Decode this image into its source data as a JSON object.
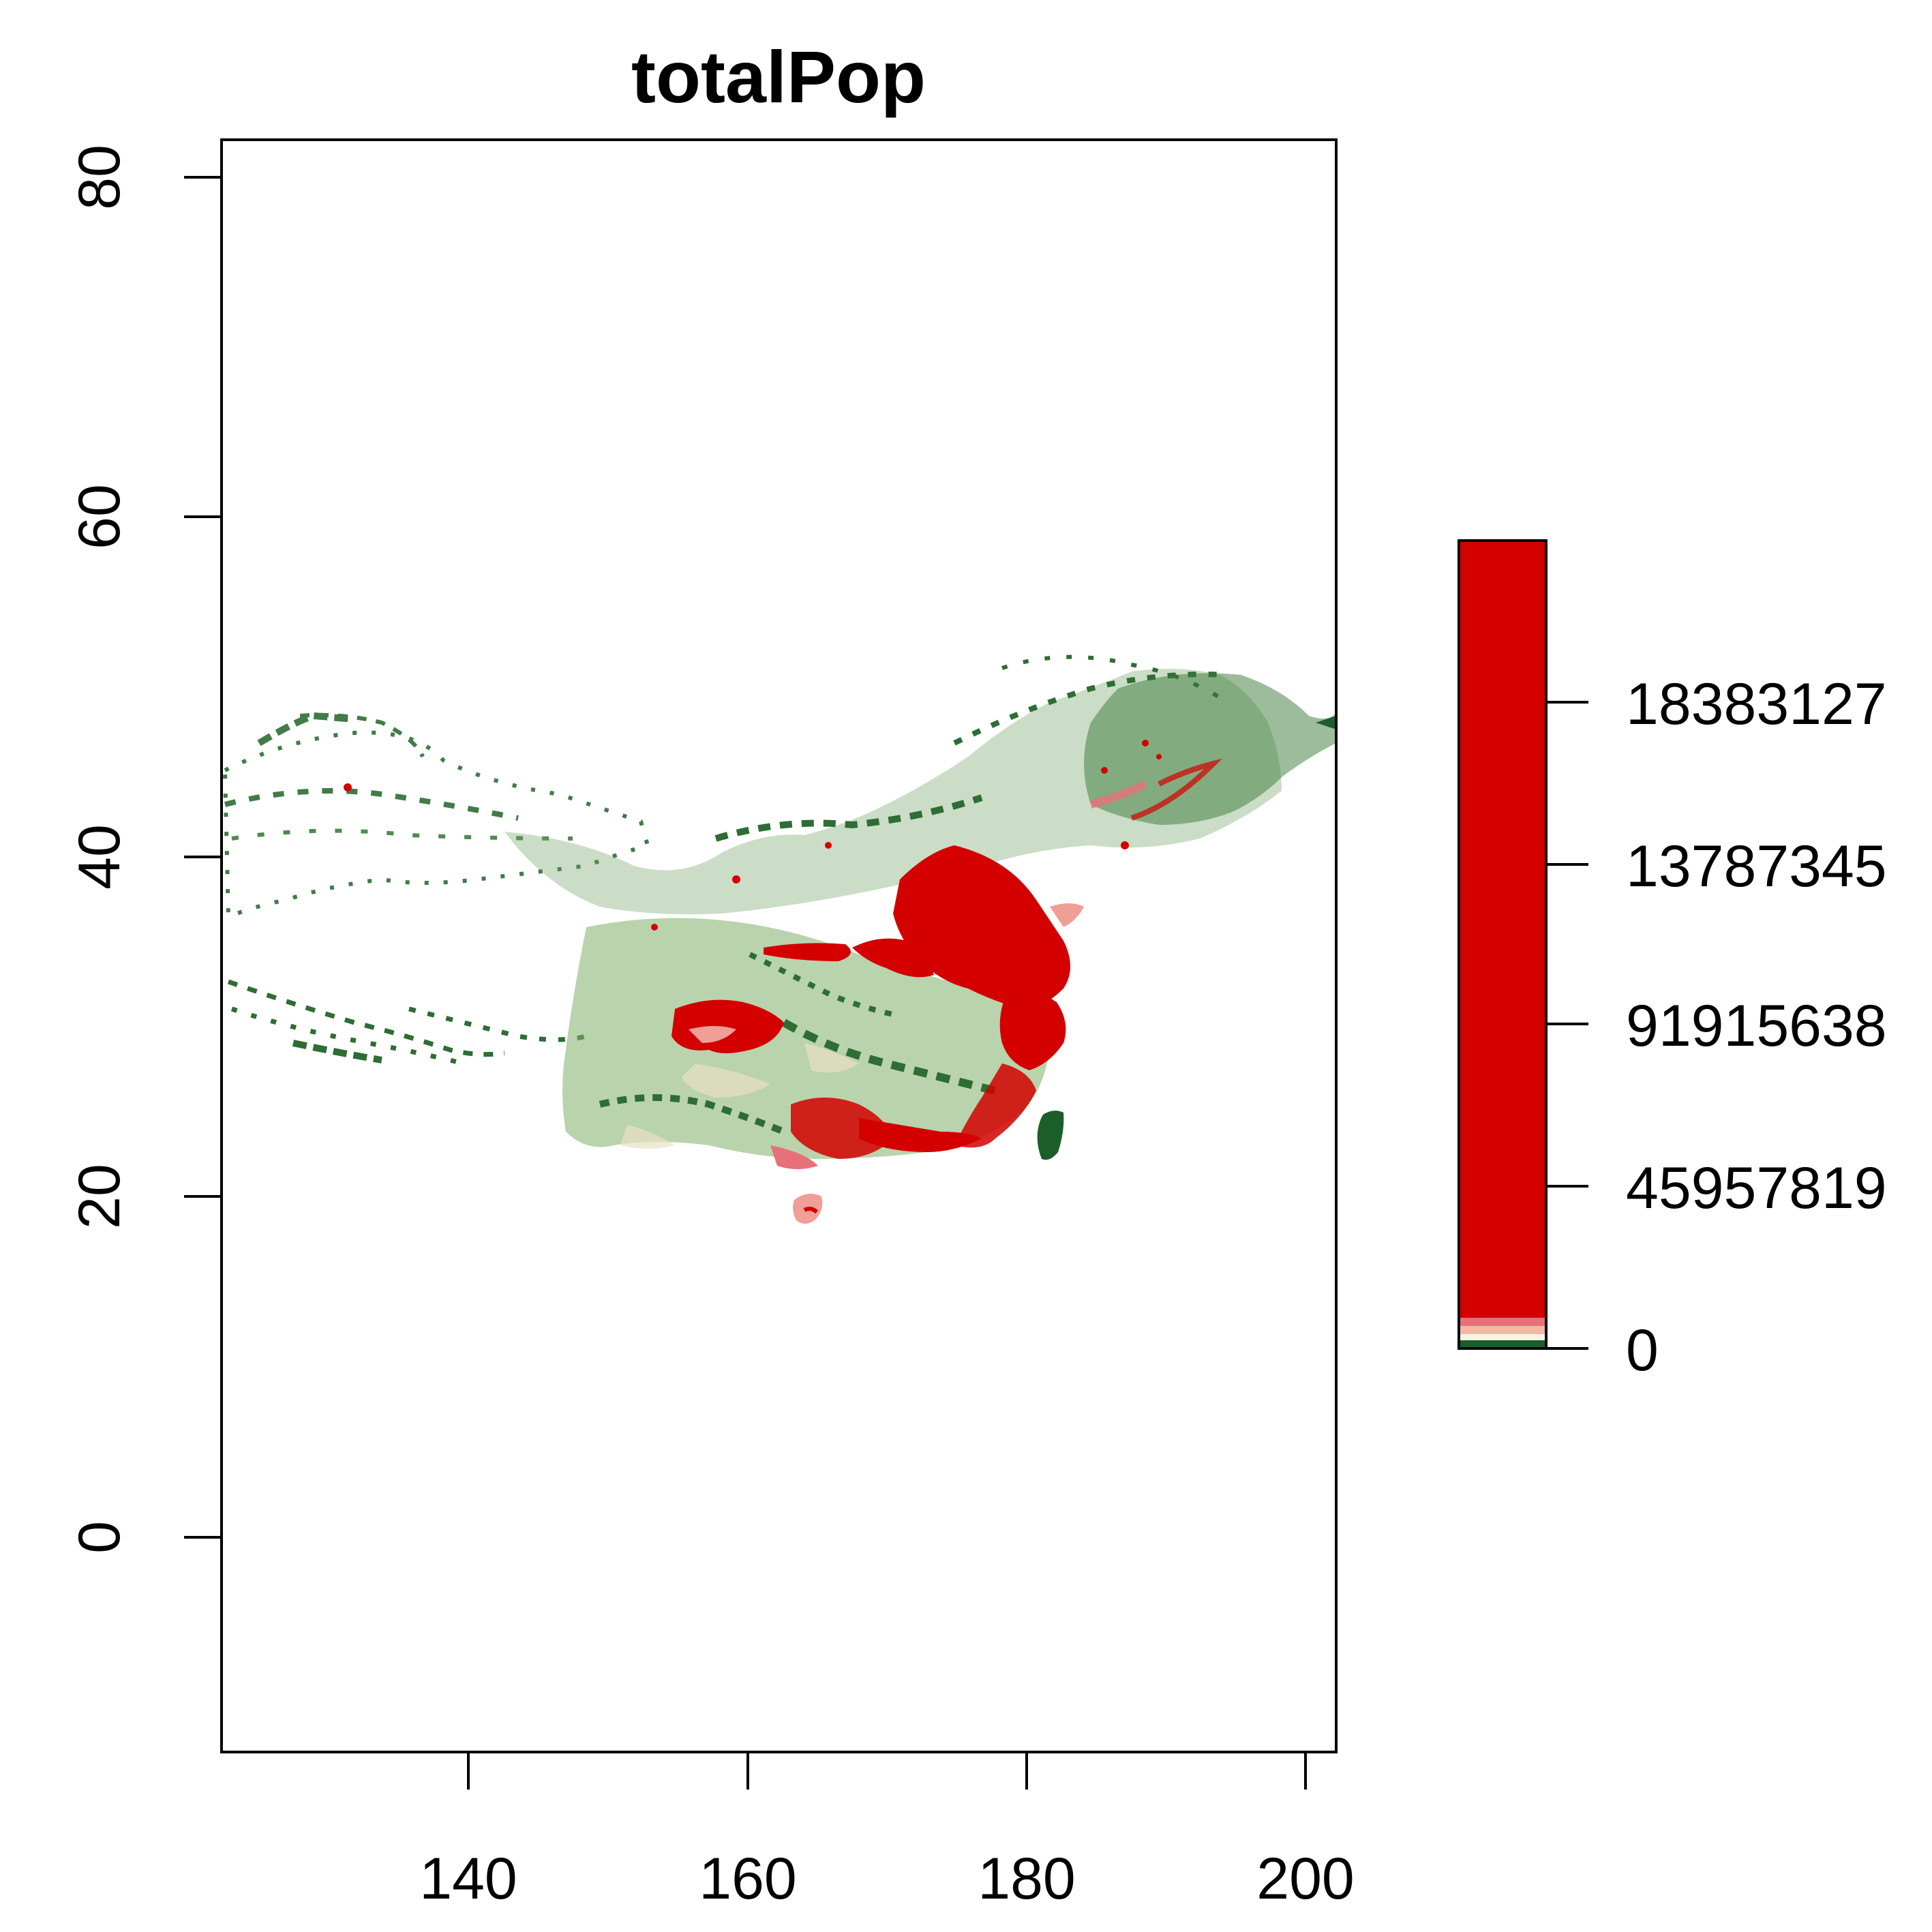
{
  "chart_data": {
    "type": "heatmap",
    "title": "totalPop",
    "xlabel": "",
    "ylabel": "",
    "x_ticks": [
      "140",
      "160",
      "180",
      "200"
    ],
    "y_ticks": [
      "0",
      "20",
      "40",
      "60",
      "80"
    ],
    "legend": {
      "labels": [
        "0",
        "45957819",
        "91915638",
        "13787345",
        "18383127"
      ],
      "colors": [
        "#1b5e2a",
        "#f7f4e6",
        "#f4b7a6",
        "#e8707a",
        "#cf0000"
      ]
    },
    "colors": {
      "low": "#1b5e2a",
      "mid_low": "#7fae6a",
      "mid": "#e9e0c5",
      "mid_high": "#ef9f96",
      "high": "#d40000"
    }
  }
}
